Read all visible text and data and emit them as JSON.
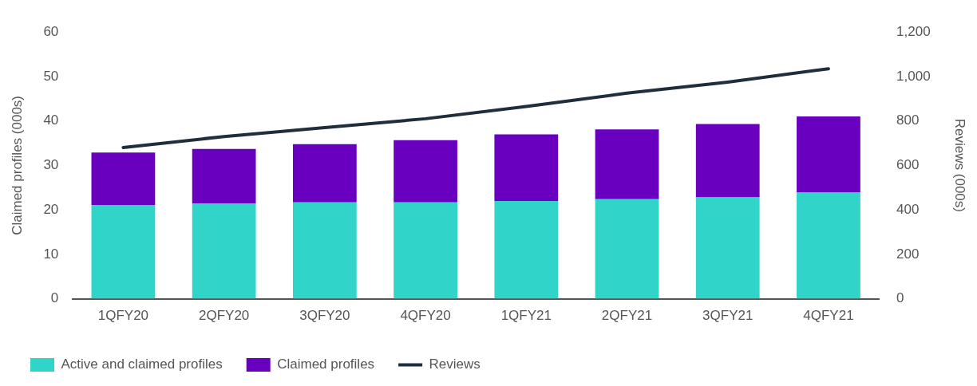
{
  "chart_data": {
    "type": "bar",
    "categories": [
      "1QFY20",
      "2QFY20",
      "3QFY20",
      "4QFY20",
      "1QFY21",
      "2QFY21",
      "3QFY21",
      "4QFY21"
    ],
    "stacked": true,
    "ylabel": "Claimed profiles (000s)",
    "y2label": "Reviews (000s)",
    "ylim": [
      0,
      60
    ],
    "yticks": [
      0,
      10,
      20,
      30,
      40,
      50,
      60
    ],
    "y2lim": [
      0,
      1200
    ],
    "y2ticks": [
      {
        "value": 0,
        "label": "0"
      },
      {
        "value": 200,
        "label": "200"
      },
      {
        "value": 400,
        "label": "400"
      },
      {
        "value": 600,
        "label": "600"
      },
      {
        "value": 800,
        "label": "800"
      },
      {
        "value": 1000,
        "label": "1,000"
      },
      {
        "value": 1200,
        "label": "1,200"
      }
    ],
    "grid": false,
    "legend": "bottom left",
    "series": [
      {
        "name": "Active and claimed profiles",
        "color": "#31d4c9",
        "values": [
          21.1,
          21.4,
          21.7,
          21.7,
          22.0,
          22.4,
          22.8,
          23.9
        ]
      },
      {
        "name": "Claimed profiles",
        "color": "#6900c0",
        "values": [
          11.8,
          12.3,
          13.1,
          14.0,
          15.0,
          15.7,
          16.5,
          17.1
        ]
      },
      {
        "name": "Reviews",
        "type": "line",
        "axis": "y2",
        "color": "#1f2d3d",
        "values": [
          680,
          730,
          770,
          810,
          865,
          925,
          975,
          1035
        ]
      }
    ]
  }
}
